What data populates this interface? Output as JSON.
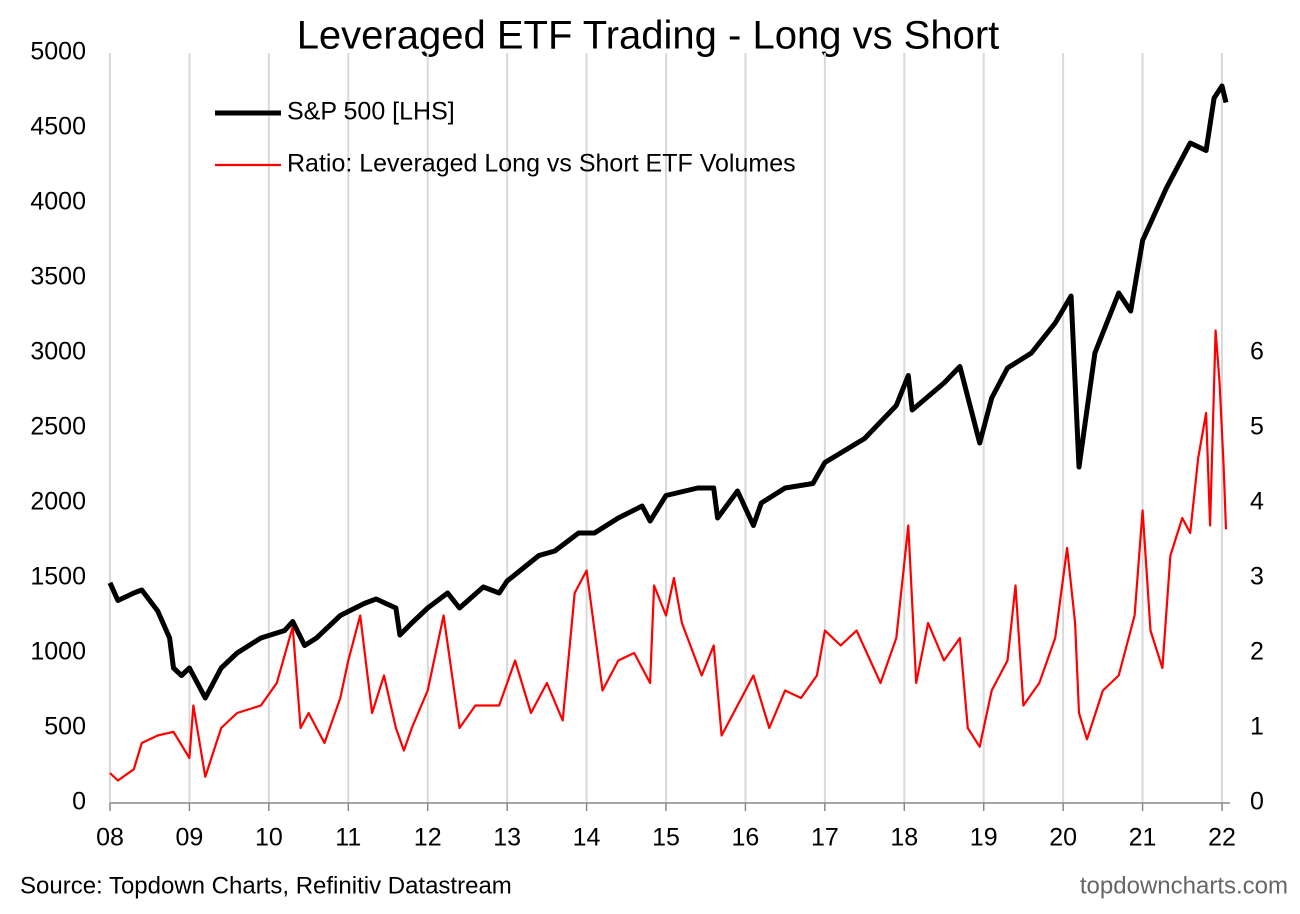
{
  "chart_data": {
    "type": "line",
    "title": "Leveraged ETF Trading - Long vs Short",
    "source": "Source: Topdown Charts, Refinitiv Datastream",
    "watermark": "topdowncharts.com",
    "legend_position": "upper left",
    "grid": "x",
    "xlim": [
      2008,
      2022.1
    ],
    "xticks": [
      {
        "value": 2008,
        "label": "08"
      },
      {
        "value": 2009,
        "label": "09"
      },
      {
        "value": 2010,
        "label": "10"
      },
      {
        "value": 2011,
        "label": "11"
      },
      {
        "value": 2012,
        "label": "12"
      },
      {
        "value": 2013,
        "label": "13"
      },
      {
        "value": 2014,
        "label": "14"
      },
      {
        "value": 2015,
        "label": "15"
      },
      {
        "value": 2016,
        "label": "16"
      },
      {
        "value": 2017,
        "label": "17"
      },
      {
        "value": 2018,
        "label": "18"
      },
      {
        "value": 2019,
        "label": "19"
      },
      {
        "value": 2020,
        "label": "20"
      },
      {
        "value": 2021,
        "label": "21"
      },
      {
        "value": 2022,
        "label": "22"
      }
    ],
    "ylim": [
      0,
      5000
    ],
    "yticks": [
      0,
      500,
      1000,
      1500,
      2000,
      2500,
      3000,
      3500,
      4000,
      4500,
      5000
    ],
    "y2lim": [
      0,
      10
    ],
    "y2ticks": [
      0,
      1,
      2,
      3,
      4,
      5,
      6
    ],
    "series": [
      {
        "name": "S&P 500 [LHS]",
        "color": "#000000",
        "x": [
          2008.0,
          2008.1,
          2008.3,
          2008.4,
          2008.6,
          2008.75,
          2008.8,
          2008.9,
          2009.0,
          2009.2,
          2009.4,
          2009.6,
          2009.9,
          2010.2,
          2010.3,
          2010.45,
          2010.6,
          2010.9,
          2011.2,
          2011.35,
          2011.6,
          2011.65,
          2011.8,
          2012.0,
          2012.25,
          2012.4,
          2012.7,
          2012.9,
          2013.0,
          2013.4,
          2013.6,
          2013.9,
          2014.1,
          2014.4,
          2014.7,
          2014.8,
          2015.0,
          2015.4,
          2015.6,
          2015.65,
          2015.9,
          2016.1,
          2016.2,
          2016.5,
          2016.85,
          2017.0,
          2017.5,
          2017.9,
          2018.05,
          2018.1,
          2018.5,
          2018.7,
          2018.95,
          2019.1,
          2019.3,
          2019.6,
          2019.9,
          2020.1,
          2020.2,
          2020.4,
          2020.7,
          2020.85,
          2021.0,
          2021.3,
          2021.6,
          2021.8,
          2021.9,
          2022.0,
          2022.05
        ],
        "values": [
          1468,
          1350,
          1400,
          1420,
          1280,
          1100,
          900,
          850,
          900,
          700,
          900,
          1000,
          1100,
          1150,
          1210,
          1050,
          1100,
          1250,
          1330,
          1360,
          1300,
          1120,
          1200,
          1300,
          1400,
          1300,
          1440,
          1400,
          1480,
          1650,
          1680,
          1800,
          1800,
          1900,
          1980,
          1880,
          2050,
          2100,
          2100,
          1900,
          2080,
          1850,
          2000,
          2100,
          2130,
          2270,
          2430,
          2650,
          2850,
          2620,
          2800,
          2910,
          2400,
          2700,
          2900,
          3000,
          3200,
          3380,
          2240,
          3000,
          3400,
          3280,
          3750,
          4100,
          4400,
          4350,
          4700,
          4780,
          4670
        ]
      },
      {
        "name": "Ratio: Leveraged Long vs Short ETF Volumes",
        "color": "#ff0000",
        "axis": "y2",
        "x": [
          2008.0,
          2008.1,
          2008.3,
          2008.4,
          2008.6,
          2008.8,
          2009.0,
          2009.05,
          2009.2,
          2009.4,
          2009.6,
          2009.9,
          2010.1,
          2010.3,
          2010.4,
          2010.5,
          2010.7,
          2010.9,
          2011.0,
          2011.15,
          2011.3,
          2011.45,
          2011.6,
          2011.7,
          2011.8,
          2012.0,
          2012.2,
          2012.4,
          2012.6,
          2012.9,
          2013.1,
          2013.3,
          2013.5,
          2013.7,
          2013.85,
          2014.0,
          2014.2,
          2014.4,
          2014.6,
          2014.8,
          2014.85,
          2015.0,
          2015.1,
          2015.2,
          2015.45,
          2015.6,
          2015.7,
          2015.9,
          2016.1,
          2016.3,
          2016.5,
          2016.7,
          2016.9,
          2017.0,
          2017.2,
          2017.4,
          2017.7,
          2017.9,
          2018.05,
          2018.15,
          2018.3,
          2018.5,
          2018.7,
          2018.8,
          2018.95,
          2019.1,
          2019.3,
          2019.4,
          2019.5,
          2019.7,
          2019.9,
          2020.05,
          2020.15,
          2020.2,
          2020.3,
          2020.5,
          2020.7,
          2020.9,
          2021.0,
          2021.1,
          2021.25,
          2021.35,
          2021.5,
          2021.6,
          2021.7,
          2021.8,
          2021.85,
          2021.92,
          2021.97,
          2022.02,
          2022.05
        ],
        "values": [
          0.4,
          0.3,
          0.45,
          0.8,
          0.9,
          0.95,
          0.6,
          1.3,
          0.35,
          1.0,
          1.2,
          1.3,
          1.6,
          2.35,
          1.0,
          1.2,
          0.8,
          1.4,
          1.9,
          2.5,
          1.2,
          1.7,
          1.0,
          0.7,
          1.0,
          1.5,
          2.5,
          1.0,
          1.3,
          1.3,
          1.9,
          1.2,
          1.6,
          1.1,
          2.8,
          3.1,
          1.5,
          1.9,
          2.0,
          1.6,
          2.9,
          2.5,
          3.0,
          2.4,
          1.7,
          2.1,
          0.9,
          1.3,
          1.7,
          1.0,
          1.5,
          1.4,
          1.7,
          2.3,
          2.1,
          2.3,
          1.6,
          2.2,
          3.7,
          1.6,
          2.4,
          1.9,
          2.2,
          1.0,
          0.75,
          1.5,
          1.9,
          2.9,
          1.3,
          1.6,
          2.2,
          3.4,
          2.4,
          1.2,
          0.85,
          1.5,
          1.7,
          2.5,
          3.9,
          2.3,
          1.8,
          3.3,
          3.8,
          3.6,
          4.6,
          5.2,
          3.7,
          6.3,
          5.6,
          4.5,
          3.65
        ]
      }
    ]
  }
}
